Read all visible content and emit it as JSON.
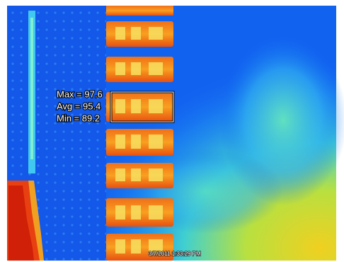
{
  "overlay": {
    "lines": [
      "Max = 97.6",
      "Avg = 95.4",
      "Min = 89.2"
    ]
  },
  "timestamp": "3/7/2011 1:33:29 PM"
}
